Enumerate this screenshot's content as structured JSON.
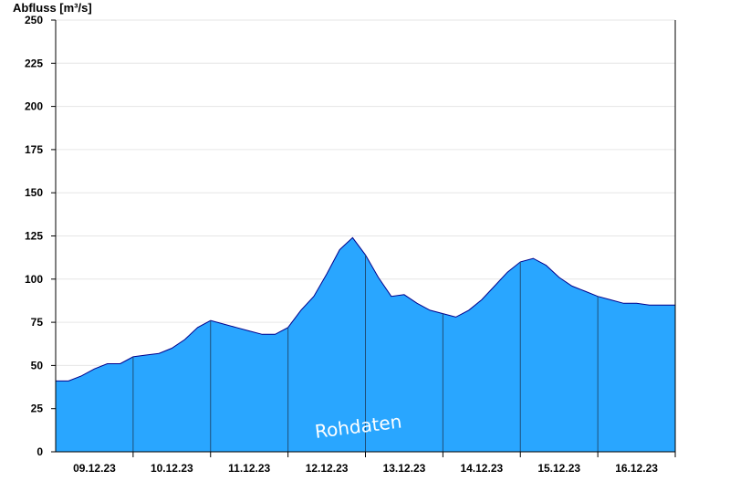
{
  "chart_data": {
    "type": "area",
    "ylabel": "Abfluss [m³/s]",
    "ylim": [
      0,
      250
    ],
    "yticks": [
      0,
      25,
      50,
      75,
      100,
      125,
      150,
      175,
      200,
      225,
      250
    ],
    "xlim": [
      "2023-12-08T12:00",
      "2023-12-16T12:00"
    ],
    "day_separators": [
      "2023-12-09T12:00",
      "2023-12-10T12:00",
      "2023-12-11T12:00",
      "2023-12-12T12:00",
      "2023-12-13T12:00",
      "2023-12-14T12:00",
      "2023-12-15T12:00",
      "2023-12-16T12:00"
    ],
    "xticks": [
      {
        "label": "09.12.23",
        "t": "2023-12-09T00:00"
      },
      {
        "label": "10.12.23",
        "t": "2023-12-10T00:00"
      },
      {
        "label": "11.12.23",
        "t": "2023-12-11T00:00"
      },
      {
        "label": "12.12.23",
        "t": "2023-12-12T00:00"
      },
      {
        "label": "13.12.23",
        "t": "2023-12-13T00:00"
      },
      {
        "label": "14.12.23",
        "t": "2023-12-14T00:00"
      },
      {
        "label": "15.12.23",
        "t": "2023-12-15T00:00"
      },
      {
        "label": "16.12.23",
        "t": "2023-12-16T00:00"
      }
    ],
    "grid": "horizontal",
    "fill_color": "#29a6ff",
    "line_color": "#00008b",
    "annotation": "Rohdaten",
    "series": [
      {
        "points": [
          [
            "2023-12-08T12:00",
            41
          ],
          [
            "2023-12-08T16:00",
            41
          ],
          [
            "2023-12-08T20:00",
            44
          ],
          [
            "2023-12-09T00:00",
            48
          ],
          [
            "2023-12-09T04:00",
            51
          ],
          [
            "2023-12-09T08:00",
            51
          ],
          [
            "2023-12-09T12:00",
            55
          ],
          [
            "2023-12-09T16:00",
            56
          ],
          [
            "2023-12-09T20:00",
            57
          ],
          [
            "2023-12-10T00:00",
            60
          ],
          [
            "2023-12-10T04:00",
            65
          ],
          [
            "2023-12-10T08:00",
            72
          ],
          [
            "2023-12-10T12:00",
            76
          ],
          [
            "2023-12-10T16:00",
            74
          ],
          [
            "2023-12-10T20:00",
            72
          ],
          [
            "2023-12-11T00:00",
            70
          ],
          [
            "2023-12-11T04:00",
            68
          ],
          [
            "2023-12-11T08:00",
            68
          ],
          [
            "2023-12-11T12:00",
            72
          ],
          [
            "2023-12-11T16:00",
            82
          ],
          [
            "2023-12-11T20:00",
            90
          ],
          [
            "2023-12-12T00:00",
            103
          ],
          [
            "2023-12-12T04:00",
            117
          ],
          [
            "2023-12-12T08:00",
            124
          ],
          [
            "2023-12-12T12:00",
            114
          ],
          [
            "2023-12-12T16:00",
            101
          ],
          [
            "2023-12-12T20:00",
            90
          ],
          [
            "2023-12-13T00:00",
            91
          ],
          [
            "2023-12-13T04:00",
            86
          ],
          [
            "2023-12-13T08:00",
            82
          ],
          [
            "2023-12-13T12:00",
            80
          ],
          [
            "2023-12-13T16:00",
            78
          ],
          [
            "2023-12-13T20:00",
            82
          ],
          [
            "2023-12-14T00:00",
            88
          ],
          [
            "2023-12-14T04:00",
            96
          ],
          [
            "2023-12-14T08:00",
            104
          ],
          [
            "2023-12-14T12:00",
            110
          ],
          [
            "2023-12-14T16:00",
            112
          ],
          [
            "2023-12-14T20:00",
            108
          ],
          [
            "2023-12-15T00:00",
            101
          ],
          [
            "2023-12-15T04:00",
            96
          ],
          [
            "2023-12-15T08:00",
            93
          ],
          [
            "2023-12-15T12:00",
            90
          ],
          [
            "2023-12-15T16:00",
            88
          ],
          [
            "2023-12-15T20:00",
            86
          ],
          [
            "2023-12-16T00:00",
            86
          ],
          [
            "2023-12-16T04:00",
            85
          ],
          [
            "2023-12-16T08:00",
            85
          ],
          [
            "2023-12-16T12:00",
            85
          ]
        ]
      }
    ]
  }
}
